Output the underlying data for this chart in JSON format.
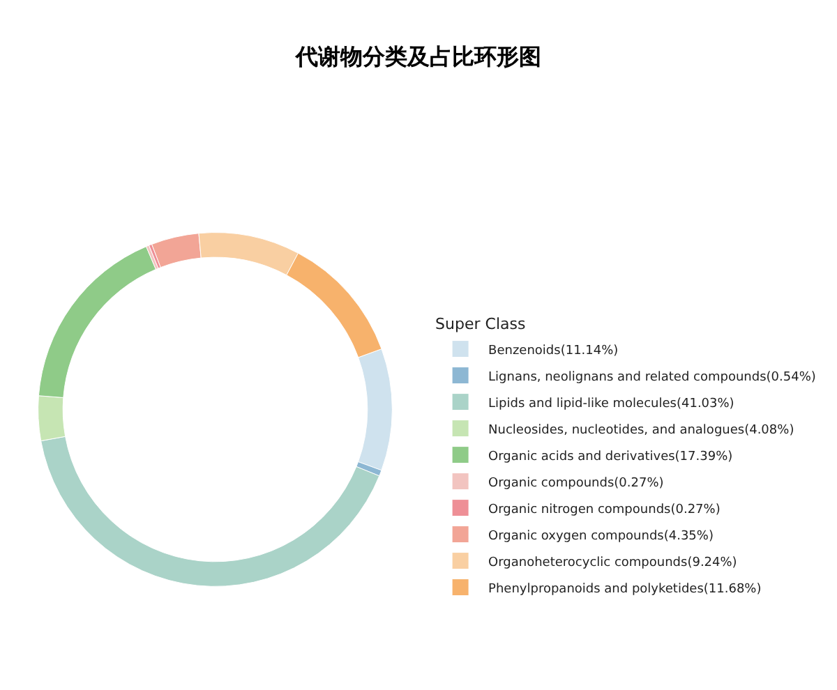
{
  "chart_data": {
    "type": "donut",
    "title": "代谢物分类及占比环形图",
    "legend_title": "Super Class",
    "legend": "right",
    "categories": [
      "Benzenoids(11.14%)",
      "Lignans, neolignans and related compounds(0.54%)",
      "Lipids and lipid-like molecules(41.03%)",
      "Nucleosides, nucleotides, and analogues(4.08%)",
      "Organic acids and derivatives(17.39%)",
      "Organic compounds(0.27%)",
      "Organic nitrogen compounds(0.27%)",
      "Organic oxygen compounds(4.35%)",
      "Organoheterocyclic compounds(9.24%)",
      "Phenylpropanoids and polyketides(11.68%)"
    ],
    "values": [
      11.14,
      0.54,
      41.03,
      4.08,
      17.39,
      0.27,
      0.27,
      4.35,
      9.24,
      11.68
    ],
    "colors": [
      "#cfe2ee",
      "#8db7d3",
      "#aad3c8",
      "#c6e5b3",
      "#8fcb88",
      "#f2c4c0",
      "#ee8f96",
      "#f2a596",
      "#f9cfa2",
      "#f7b26c"
    ]
  }
}
